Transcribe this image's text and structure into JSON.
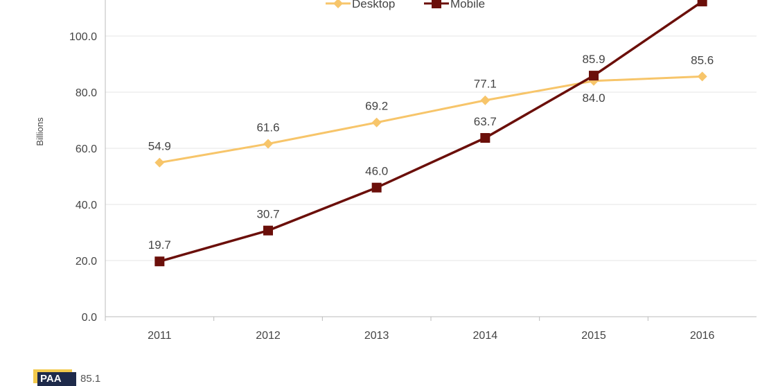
{
  "chart_data": {
    "type": "line",
    "title": "",
    "xlabel": "",
    "ylabel": "Billions",
    "categories": [
      "2011",
      "2012",
      "2013",
      "2014",
      "2015",
      "2016"
    ],
    "ylim": [
      0,
      120
    ],
    "yticks": [
      "0.0",
      "20.0",
      "40.0",
      "60.0",
      "80.0",
      "100.0"
    ],
    "ytick_values": [
      0,
      20,
      40,
      60,
      80,
      100
    ],
    "grid": true,
    "legend_position": "top",
    "series": [
      {
        "name": "Desktop",
        "color": "#f7c56a",
        "marker": "diamond",
        "values": [
          54.9,
          61.6,
          69.2,
          77.1,
          84.0,
          85.6
        ],
        "labels": [
          "54.9",
          "61.6",
          "69.2",
          "77.1",
          "84.0",
          "85.6"
        ]
      },
      {
        "name": "Mobile",
        "color": "#6b0f0a",
        "marker": "square",
        "values": [
          19.7,
          30.7,
          46.0,
          63.7,
          85.9,
          112.3
        ],
        "labels": [
          "19.7",
          "30.7",
          "46.0",
          "63.7",
          "85.9",
          ""
        ]
      }
    ]
  },
  "footer_logo": {
    "text": "PAA",
    "partial_text": "85.1",
    "color": "#1e2a4a",
    "accent": "#f2c94c"
  }
}
